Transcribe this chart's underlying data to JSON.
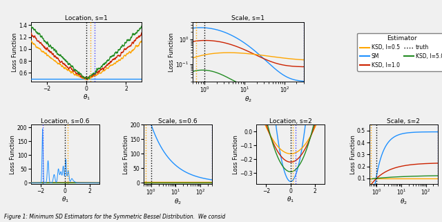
{
  "figsize": [
    6.4,
    3.21
  ],
  "dpi": 100,
  "background": "#f0f0f0",
  "colors": {
    "KSD_05": "#FFA500",
    "KSD_10": "#CC2200",
    "KSD_50": "#228B22",
    "SM": "#1E90FF",
    "vline_black": "#000000",
    "vline_orange": "#FFA500",
    "vline_blue": "#4444FF"
  },
  "legend_title": "Estimator",
  "legend_entries": [
    "KSD, l=0.5",
    "KSD, l=1.0",
    "KSD, l=5.0",
    "SM",
    "truth"
  ]
}
